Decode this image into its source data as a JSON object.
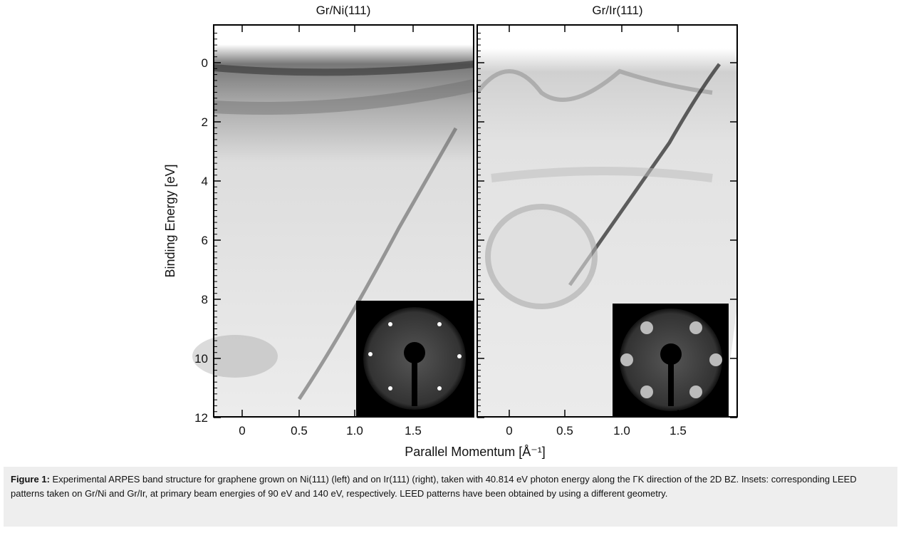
{
  "figure": {
    "panels": [
      {
        "title": "Gr/Ni(111)",
        "xticks": [
          "0",
          "0.5",
          "1.0",
          "1.5"
        ]
      },
      {
        "title": "Gr/Ir(111)",
        "xticks": [
          "0",
          "0.5",
          "1.0",
          "1.5"
        ]
      }
    ],
    "y_axis": {
      "label": "Binding Energy [eV]",
      "ticks": [
        "0",
        "2",
        "4",
        "6",
        "8",
        "10",
        "12"
      ]
    },
    "x_axis": {
      "label": "Parallel Momentum [Å⁻¹]"
    }
  },
  "caption": {
    "label": "Figure 1:",
    "text": "Experimental ARPES band structure for graphene grown on Ni(111) (left) and on Ir(111) (right), taken with 40.814 eV photon energy along the ΓK direction of the 2D BZ. Insets: corresponding LEED patterns taken on Gr/Ni and Gr/Ir, at primary beam energies of 90 eV and 140 eV, respectively. LEED patterns have been obtained by using a different geometry."
  }
}
